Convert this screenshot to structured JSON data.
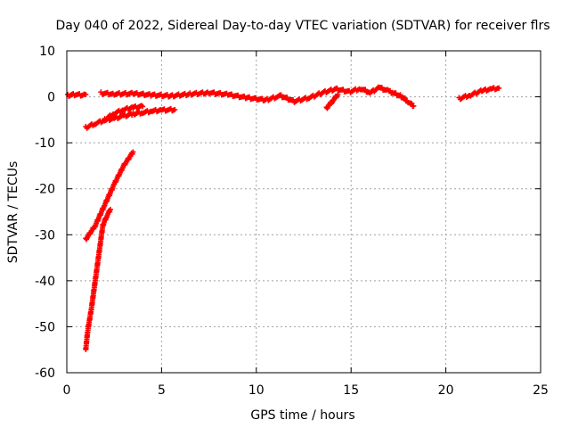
{
  "chart_data": {
    "type": "scatter",
    "title": "Day 040 of 2022, Sidereal Day-to-day VTEC variation (SDTVAR) for receiver flrs",
    "xlabel": "GPS time / hours",
    "ylabel": "SDTVAR / TECUs",
    "xlim": [
      0,
      25
    ],
    "ylim": [
      -60,
      10
    ],
    "xticks": [
      0,
      5,
      10,
      15,
      20,
      25
    ],
    "yticks": [
      -60,
      -50,
      -40,
      -30,
      -20,
      -10,
      0,
      10
    ],
    "grid": true,
    "marker": "plus",
    "color": "#ff0000",
    "series": [
      {
        "segments": [
          [
            [
              0.05,
              0.3
            ],
            [
              0.4,
              0.5
            ],
            [
              0.8,
              0.4
            ],
            [
              1.0,
              0.5
            ]
          ],
          [
            [
              1.8,
              0.8
            ],
            [
              2.5,
              0.6
            ],
            [
              3.5,
              0.7
            ],
            [
              4.5,
              0.4
            ],
            [
              5.5,
              0.2
            ],
            [
              6.5,
              0.6
            ],
            [
              7.5,
              0.9
            ],
            [
              8.5,
              0.5
            ],
            [
              9.5,
              -0.2
            ],
            [
              10.5,
              -0.7
            ],
            [
              11.3,
              0.2
            ],
            [
              12.0,
              -1.0
            ],
            [
              12.8,
              -0.2
            ],
            [
              13.5,
              0.9
            ],
            [
              14.2,
              1.7
            ],
            [
              14.9,
              1.1
            ],
            [
              15.5,
              1.8
            ],
            [
              16.0,
              0.9
            ],
            [
              16.5,
              2.0
            ],
            [
              17.0,
              1.2
            ],
            [
              17.6,
              0.2
            ],
            [
              18.0,
              -1.0
            ],
            [
              18.3,
              -2.0
            ]
          ],
          [
            [
              13.7,
              -2.5
            ],
            [
              14.0,
              -1.0
            ],
            [
              14.3,
              0.5
            ]
          ],
          [
            [
              20.7,
              -0.4
            ],
            [
              21.3,
              0.4
            ],
            [
              21.9,
              1.3
            ],
            [
              22.4,
              1.7
            ],
            [
              22.8,
              1.9
            ]
          ],
          [
            [
              1.0,
              -6.7
            ],
            [
              1.5,
              -5.8
            ],
            [
              2.0,
              -5.1
            ],
            [
              2.5,
              -4.7
            ],
            [
              3.0,
              -4.2
            ],
            [
              3.5,
              -3.7
            ],
            [
              4.0,
              -3.4
            ],
            [
              4.5,
              -3.1
            ],
            [
              5.0,
              -2.9
            ],
            [
              5.7,
              -2.8
            ]
          ],
          [
            [
              2.0,
              -5.0
            ],
            [
              2.5,
              -3.6
            ],
            [
              3.0,
              -2.8
            ],
            [
              3.5,
              -2.3
            ],
            [
              4.0,
              -2.1
            ]
          ],
          [
            [
              1.0,
              -31.0
            ],
            [
              1.5,
              -28.0
            ],
            [
              2.0,
              -23.5
            ],
            [
              2.5,
              -19.0
            ],
            [
              3.0,
              -15.0
            ],
            [
              3.5,
              -12.0
            ]
          ],
          [
            [
              1.0,
              -55.0
            ],
            [
              1.1,
              -51.0
            ],
            [
              1.3,
              -46.0
            ],
            [
              1.5,
              -40.0
            ],
            [
              1.7,
              -34.0
            ],
            [
              1.9,
              -28.0
            ],
            [
              2.1,
              -26.0
            ],
            [
              2.3,
              -24.5
            ]
          ]
        ]
      }
    ]
  }
}
